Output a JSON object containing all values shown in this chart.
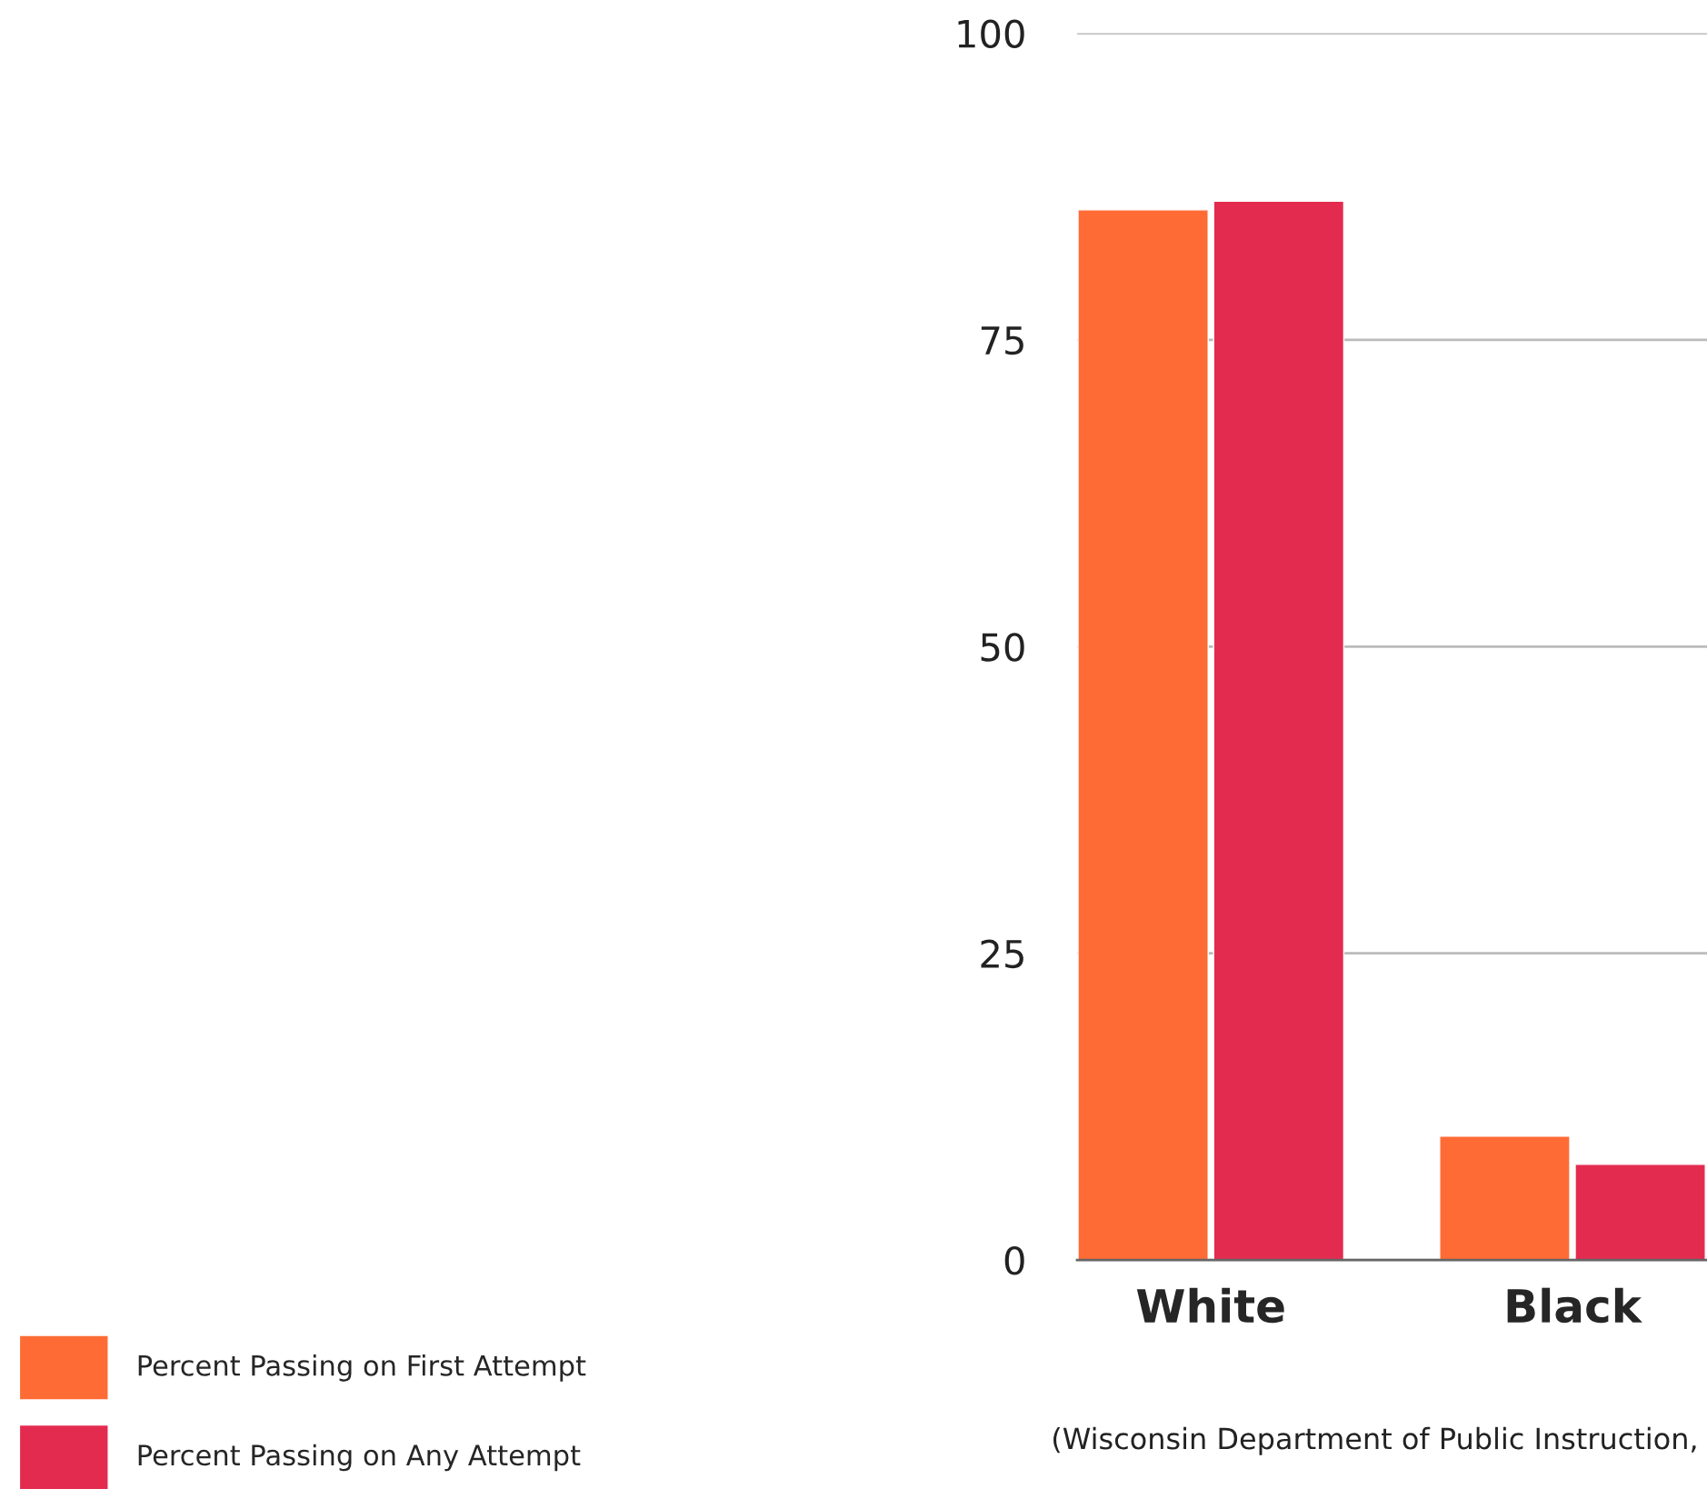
{
  "chart_data": {
    "type": "bar",
    "categories": [
      "White",
      "Black"
    ],
    "series": [
      {
        "name": "Percent Passing on First Attempt",
        "color": "#ff6b35",
        "values": [
          85.6,
          10.1
        ]
      },
      {
        "name": "Percent Passing on Any Attempt",
        "color": "#e32b50",
        "values": [
          86.3,
          7.8
        ]
      }
    ],
    "ylim": [
      0,
      100
    ],
    "yticks": [
      0,
      25,
      50,
      75,
      100
    ],
    "grid": "y",
    "legend": "bottom left",
    "annotations": [
      "(Wisconsin Department of Public Instruction,"
    ]
  }
}
